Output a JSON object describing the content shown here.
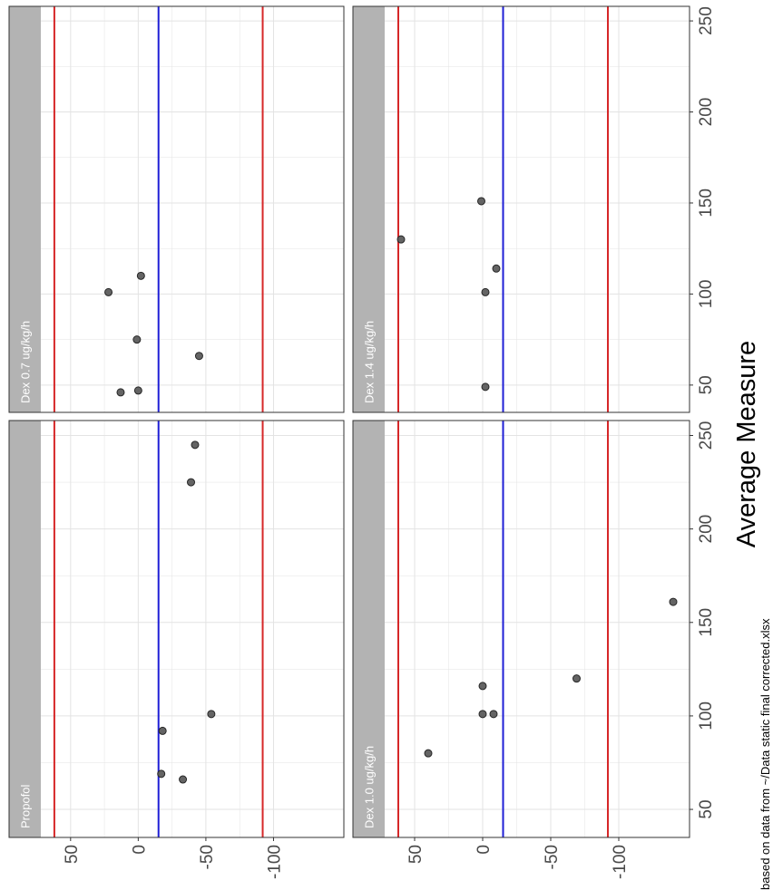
{
  "chart_data": {
    "type": "scatter",
    "orientation": "rotated-90-clockwise",
    "facet_layout": "2x2",
    "xlabel": "Average Measure",
    "ylabel": "",
    "caption": "based on data from ~/Data static final corrected.xlsx",
    "xlim": [
      35,
      258
    ],
    "ylim": [
      -152,
      72
    ],
    "x_ticks": [
      "50",
      "100",
      "150",
      "200",
      "250"
    ],
    "y_ticks": [
      "50",
      "0",
      "-50",
      "-100"
    ],
    "y_tick_values": [
      50,
      0,
      -50,
      -100
    ],
    "x_tick_values": [
      50,
      100,
      150,
      200,
      250
    ],
    "reference_lines": [
      {
        "value": 62,
        "color": "#d62728"
      },
      {
        "value": -15,
        "color": "#1f1fd6"
      },
      {
        "value": -92,
        "color": "#d62728"
      }
    ],
    "grid": true,
    "panels": [
      {
        "name": "Propofol",
        "points": [
          [
            69,
            -17
          ],
          [
            92,
            -18
          ],
          [
            66,
            -33
          ],
          [
            101,
            -54
          ],
          [
            225,
            -39
          ],
          [
            245,
            -42
          ]
        ]
      },
      {
        "name": "Dex 0.7 ug/kg/h",
        "points": [
          [
            46,
            13
          ],
          [
            47,
            0
          ],
          [
            75,
            1
          ],
          [
            101,
            22
          ],
          [
            110,
            -2
          ],
          [
            66,
            -45
          ]
        ]
      },
      {
        "name": "Dex 1.0 ug/kg/h",
        "points": [
          [
            80,
            40
          ],
          [
            101,
            0
          ],
          [
            116,
            0
          ],
          [
            101,
            -8
          ],
          [
            120,
            -69
          ],
          [
            161,
            -140
          ]
        ]
      },
      {
        "name": "Dex 1.4 ug/kg/h",
        "points": [
          [
            49,
            -2
          ],
          [
            101,
            -2
          ],
          [
            114,
            -10
          ],
          [
            151,
            1
          ],
          [
            130,
            60
          ]
        ]
      }
    ]
  },
  "colors": {
    "strip": "#b3b3b3",
    "grid": "#e3e3e3",
    "border": "#333333",
    "point_fill": "#5c5c5c",
    "point_stroke": "#262626"
  }
}
